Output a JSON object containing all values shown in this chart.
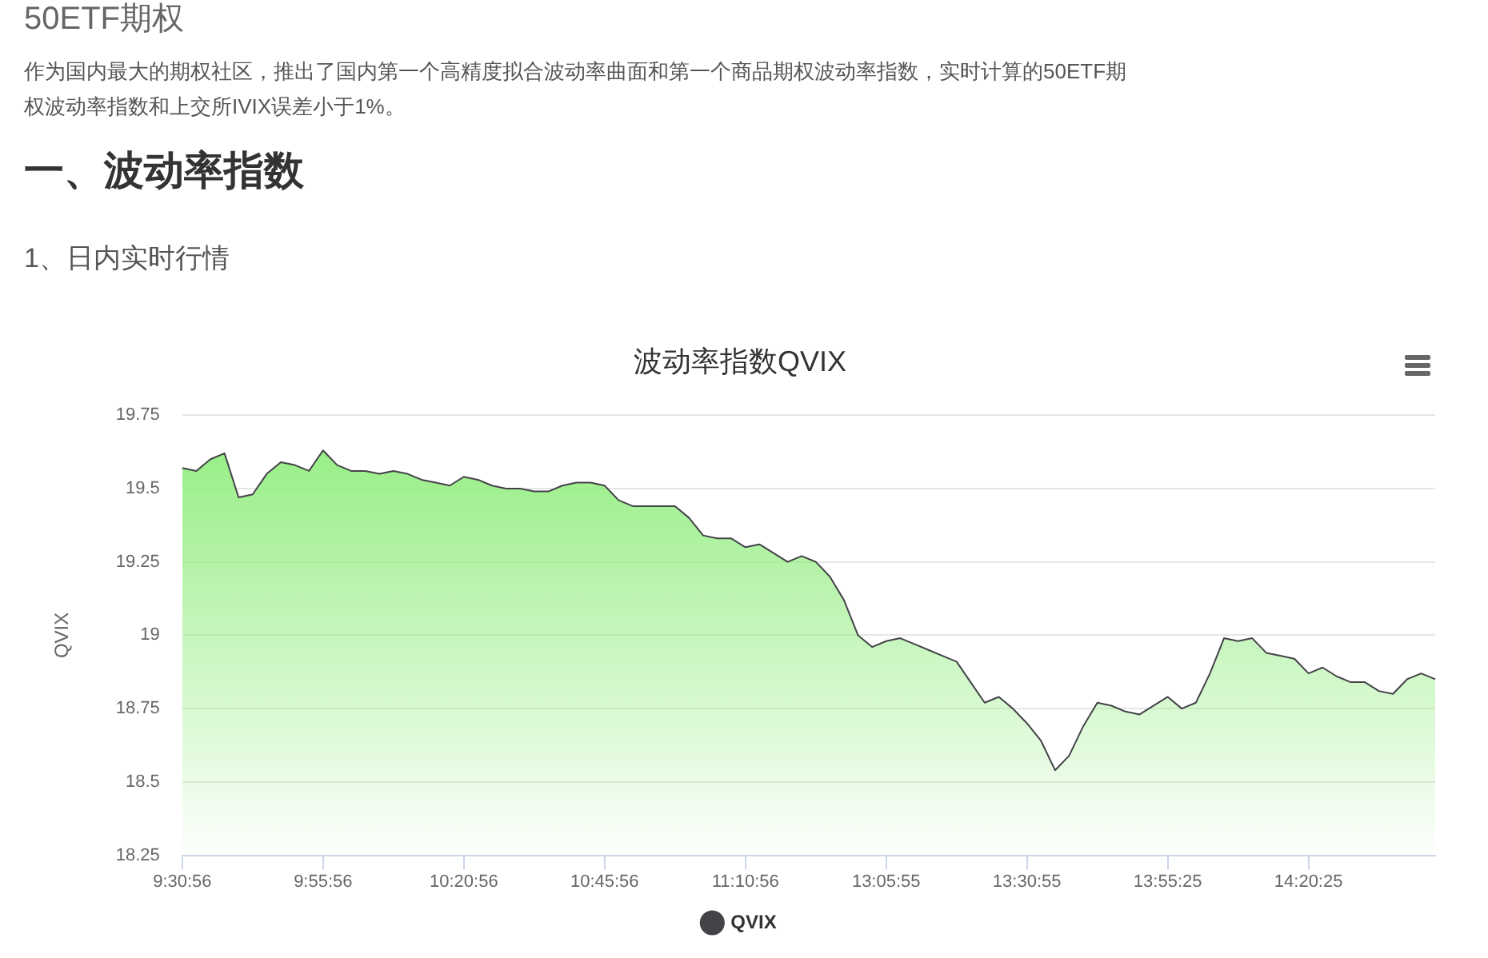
{
  "chart_data": {
    "type": "area",
    "title": "波动率指数QVIX",
    "ylabel": "QVIX",
    "annotations": [
      "50ETF期权",
      "作为国内最大的期权社区，推出了国内第一个高精度拟合波动率曲面和第一个商品期权波动率指数，实时计算的50ETF期权波动率指数和上交所IVIX误差小于1%。",
      "一、波动率指数",
      "1、日内实时行情"
    ],
    "categories": [
      "9:30:56",
      null,
      null,
      null,
      null,
      null,
      null,
      null,
      null,
      null,
      "9:55:56",
      null,
      null,
      null,
      null,
      null,
      null,
      null,
      null,
      null,
      "10:20:56",
      null,
      null,
      null,
      null,
      null,
      null,
      null,
      null,
      null,
      "10:45:56",
      null,
      null,
      null,
      null,
      null,
      null,
      null,
      null,
      null,
      "11:10:56",
      null,
      null,
      null,
      null,
      null,
      null,
      null,
      null,
      null,
      "13:05:55",
      null,
      null,
      null,
      null,
      null,
      null,
      null,
      null,
      null,
      "13:30:55",
      null,
      null,
      null,
      null,
      null,
      null,
      null,
      null,
      null,
      "13:55:25",
      null,
      null,
      null,
      null,
      null,
      null,
      null,
      null,
      null,
      "14:20:25",
      null,
      null,
      null,
      null,
      null,
      null,
      null,
      null,
      null
    ],
    "series": [
      {
        "name": "QVIX",
        "color": "#434348",
        "values": [
          19.57,
          19.56,
          19.6,
          19.62,
          19.47,
          19.48,
          19.55,
          19.59,
          19.58,
          19.56,
          19.63,
          19.58,
          19.56,
          19.56,
          19.55,
          19.56,
          19.55,
          19.53,
          19.52,
          19.51,
          19.54,
          19.53,
          19.51,
          19.5,
          19.5,
          19.49,
          19.49,
          19.51,
          19.52,
          19.52,
          19.51,
          19.46,
          19.44,
          19.44,
          19.44,
          19.44,
          19.4,
          19.34,
          19.33,
          19.33,
          19.3,
          19.31,
          19.28,
          19.25,
          19.27,
          19.25,
          19.2,
          19.12,
          19.0,
          18.96,
          18.98,
          18.99,
          18.97,
          18.95,
          18.93,
          18.91,
          18.84,
          18.77,
          18.79,
          18.75,
          18.7,
          18.64,
          18.54,
          18.59,
          18.69,
          18.77,
          18.76,
          18.74,
          18.73,
          18.76,
          18.79,
          18.75,
          18.77,
          18.87,
          18.99,
          18.98,
          18.99,
          18.94,
          18.93,
          18.92,
          18.87,
          18.89,
          18.86,
          18.84,
          18.84,
          18.81,
          18.8,
          18.85,
          18.87,
          18.85
        ]
      }
    ],
    "ylim": [
      18.25,
      19.75
    ],
    "yticks": [
      18.25,
      18.5,
      18.75,
      19,
      19.25,
      19.5,
      19.75
    ],
    "grid": "y",
    "legend": "bottom"
  }
}
